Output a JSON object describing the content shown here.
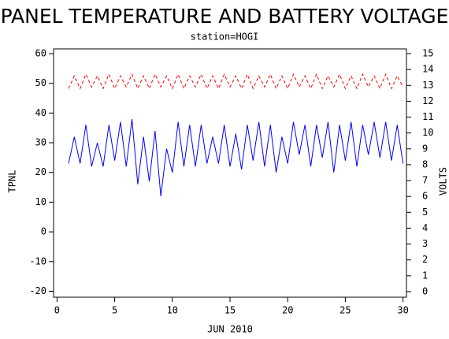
{
  "chart_data": {
    "type": "line",
    "title": "PANEL TEMPERATURE AND BATTERY VOLTAGE",
    "subtitle": "station=HOGI",
    "xlabel": "JUN 2010",
    "ylabel": "TPNL",
    "y2label": "VOLTS",
    "x": [
      1,
      1.5,
      2,
      2.5,
      3,
      3.5,
      4,
      4.5,
      5,
      5.5,
      6,
      6.5,
      7,
      7.5,
      8,
      8.5,
      9,
      9.5,
      10,
      10.5,
      11,
      11.5,
      12,
      12.5,
      13,
      13.5,
      14,
      14.5,
      15,
      15.5,
      16,
      16.5,
      17,
      17.5,
      18,
      18.5,
      19,
      19.5,
      20,
      20.5,
      21,
      21.5,
      22,
      22.5,
      23,
      23.5,
      24,
      24.5,
      25,
      25.5,
      26,
      26.5,
      27,
      27.5,
      28,
      28.5,
      29,
      29.5,
      30
    ],
    "series": [
      {
        "color": "#0000ff",
        "dashed": false,
        "values": [
          23,
          32,
          23,
          36,
          22,
          30,
          22,
          36,
          24,
          37,
          22,
          38,
          16,
          32,
          17,
          34,
          12,
          28,
          20,
          37,
          22,
          36,
          22,
          36,
          23,
          32,
          23,
          36,
          22,
          33,
          21,
          36,
          24,
          37,
          22,
          36,
          20,
          32,
          23,
          37,
          26,
          36,
          22,
          36,
          25,
          37,
          20,
          36,
          24,
          37,
          22,
          36,
          26,
          37,
          25,
          37,
          24,
          36,
          23
        ]
      },
      {
        "color": "#ff0000",
        "dashed": true,
        "axis": "y2",
        "values": [
          12.8,
          13.6,
          12.8,
          13.7,
          12.9,
          13.6,
          12.8,
          13.7,
          12.8,
          13.6,
          12.9,
          13.7,
          12.8,
          13.6,
          12.8,
          13.7,
          12.9,
          13.6,
          12.8,
          13.7,
          12.8,
          13.6,
          12.9,
          13.7,
          12.8,
          13.6,
          12.8,
          13.7,
          12.9,
          13.6,
          12.8,
          13.7,
          12.8,
          13.6,
          12.9,
          13.7,
          12.8,
          13.6,
          12.8,
          13.7,
          12.9,
          13.6,
          12.8,
          13.7,
          12.8,
          13.6,
          12.9,
          13.7,
          12.8,
          13.6,
          12.8,
          13.7,
          12.9,
          13.6,
          12.8,
          13.7,
          12.8,
          13.6,
          12.9
        ]
      }
    ],
    "xlim": [
      -0.3,
      30.3
    ],
    "xticks": [
      0,
      5,
      10,
      15,
      20,
      25,
      30
    ],
    "ylim": [
      -22,
      61.6
    ],
    "yticks": [
      -20,
      -10,
      0,
      10,
      20,
      30,
      40,
      50,
      60
    ],
    "y2lim": [
      -0.35,
      15.3
    ],
    "y2ticks": [
      0,
      1,
      2,
      3,
      4,
      5,
      6,
      7,
      8,
      9,
      10,
      11,
      12,
      13,
      14,
      15
    ]
  }
}
